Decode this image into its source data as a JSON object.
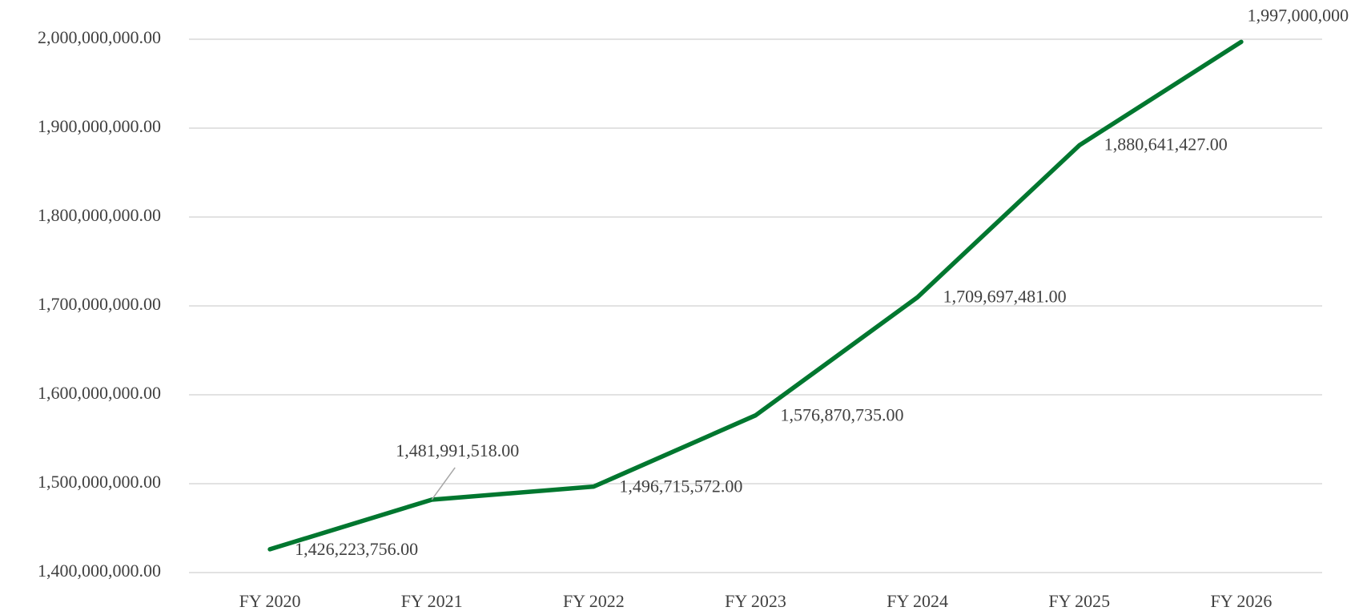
{
  "chart_data": {
    "type": "line",
    "categories": [
      "FY 2020",
      "FY 2021",
      "FY 2022",
      "FY 2023",
      "FY 2024",
      "FY 2025",
      "FY 2026"
    ],
    "series": [
      {
        "color": "#00772f",
        "values": [
          1426223756,
          1481991518,
          1496715572,
          1576870735,
          1709697481,
          1880641427,
          1997000000
        ],
        "value_labels": [
          "1,426,223,756.00",
          "1,481,991,518.00",
          "1,496,715,572.00",
          "1,576,870,735.00",
          "1,709,697,481.00",
          "1,880,641,427.00",
          "1,997,000,000"
        ]
      }
    ],
    "ylim": [
      1400000000,
      2000000000
    ],
    "yticks": [
      {
        "value": 1400000000,
        "label": "1,400,000,000.00"
      },
      {
        "value": 1500000000,
        "label": "1,500,000,000.00"
      },
      {
        "value": 1600000000,
        "label": "1,600,000,000.00"
      },
      {
        "value": 1700000000,
        "label": "1,700,000,000.00"
      },
      {
        "value": 1800000000,
        "label": "1,800,000,000.00"
      },
      {
        "value": 1900000000,
        "label": "1,900,000,000.00"
      },
      {
        "value": 2000000000,
        "label": "2,000,000,000.00"
      }
    ],
    "grid": true
  }
}
